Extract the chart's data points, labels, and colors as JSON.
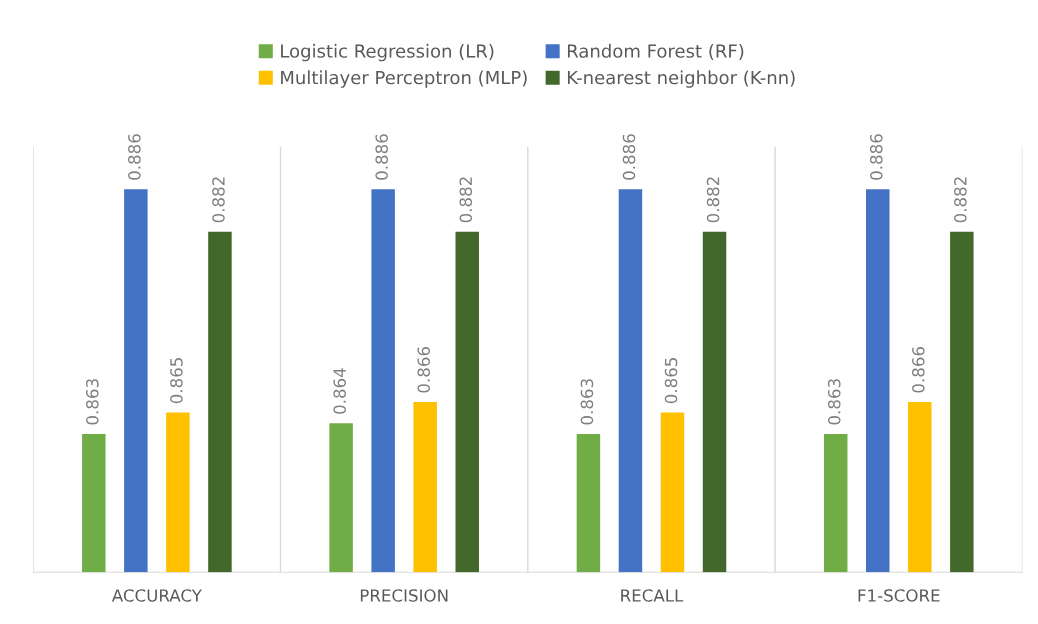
{
  "chart_data": {
    "type": "bar",
    "categories": [
      "ACCURACY",
      "PRECISION",
      "RECALL",
      "F1-SCORE"
    ],
    "series": [
      {
        "name": "Logistic Regression (LR)",
        "color": "#70ad47",
        "values": [
          0.863,
          0.864,
          0.863,
          0.863
        ]
      },
      {
        "name": "Random Forest (RF)",
        "color": "#4472c4",
        "values": [
          0.886,
          0.886,
          0.886,
          0.886
        ]
      },
      {
        "name": "Multilayer Perceptron (MLP)",
        "color": "#ffc000",
        "values": [
          0.865,
          0.866,
          0.865,
          0.866
        ]
      },
      {
        "name": "K-nearest neighbor (K-nn)",
        "color": "#43682b",
        "values": [
          0.882,
          0.882,
          0.882,
          0.882
        ]
      }
    ],
    "ylim": [
      0.85,
      0.89
    ],
    "tick_labels": "x",
    "data_labels": true,
    "grid": "x",
    "legend": "top"
  }
}
